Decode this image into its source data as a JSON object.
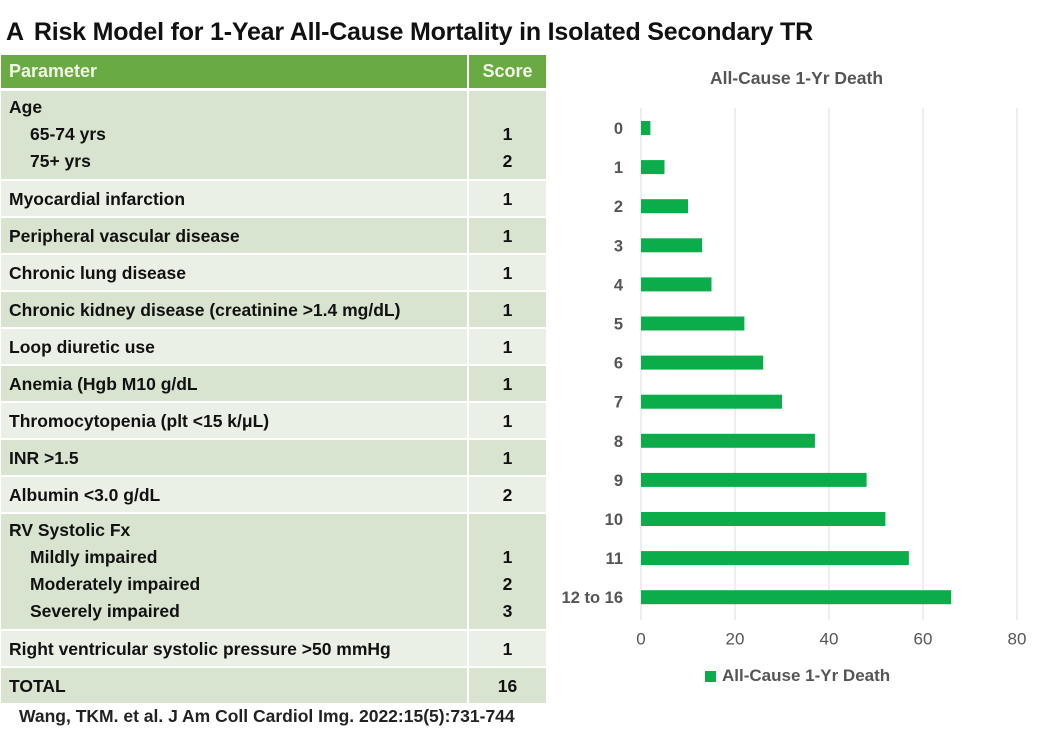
{
  "title": {
    "panel_letter": "A",
    "text": "Risk Model for 1-Year All-Cause Mortality in Isolated Secondary TR"
  },
  "table": {
    "headers": {
      "parameter": "Parameter",
      "score": "Score"
    },
    "rows": [
      {
        "label": "Age",
        "sub": [
          {
            "label": "65-74 yrs",
            "score": "1"
          },
          {
            "label": "75+ yrs",
            "score": "2"
          }
        ],
        "shade": "dark"
      },
      {
        "label": "Myocardial infarction",
        "score": "1",
        "shade": "light"
      },
      {
        "label": "Peripheral vascular disease",
        "score": "1",
        "shade": "dark"
      },
      {
        "label": "Chronic lung disease",
        "score": "1",
        "shade": "light"
      },
      {
        "label": "Chronic kidney disease (creatinine >1.4 mg/dL)",
        "score": "1",
        "shade": "dark"
      },
      {
        "label": "Loop diuretic use",
        "score": "1",
        "shade": "light"
      },
      {
        "label": "Anemia (Hgb M10 g/dL",
        "score": "1",
        "shade": "dark"
      },
      {
        "label": "Thromocytopenia (plt <15 k/μL)",
        "score": "1",
        "shade": "light"
      },
      {
        "label": "INR >1.5",
        "score": "1",
        "shade": "dark"
      },
      {
        "label": "Albumin <3.0 g/dL",
        "score": "2",
        "shade": "light"
      },
      {
        "label": "RV Systolic Fx",
        "sub": [
          {
            "label": "Mildly impaired",
            "score": "1"
          },
          {
            "label": "Moderately impaired",
            "score": "2"
          },
          {
            "label": "Severely impaired",
            "score": "3"
          }
        ],
        "shade": "dark"
      },
      {
        "label": "Right ventricular systolic pressure >50 mmHg",
        "score": "1",
        "shade": "light"
      },
      {
        "label": "TOTAL",
        "score": "16",
        "shade": "dark"
      }
    ]
  },
  "citation": "Wang, TKM. et al. J Am Coll Cardiol Img. 2022:15(5):731-744",
  "colors": {
    "header_green": "#6aaa42",
    "row_dark": "#d8e4cf",
    "row_light": "#ebf0e7",
    "bar_green": "#0aad4a"
  },
  "chart_data": {
    "type": "bar",
    "orientation": "horizontal",
    "title": "All-Cause 1-Yr Death",
    "categories": [
      "0",
      "1",
      "2",
      "3",
      "4",
      "5",
      "6",
      "7",
      "8",
      "9",
      "10",
      "11",
      "12 to 16"
    ],
    "series": [
      {
        "name": "All-Cause 1-Yr Death",
        "values": [
          2,
          5,
          10,
          13,
          15,
          22,
          26,
          30,
          37,
          48,
          52,
          57,
          66
        ]
      }
    ],
    "xlim": [
      0,
      80
    ],
    "xticks": [
      "0",
      "20",
      "40",
      "60",
      "80"
    ],
    "xlabel": "",
    "ylabel": "",
    "grid": "vertical",
    "legend": "bottom"
  }
}
